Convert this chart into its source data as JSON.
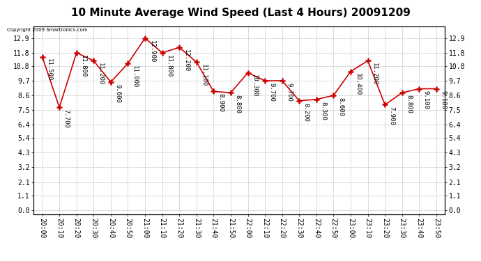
{
  "title": "10 Minute Average Wind Speed (Last 4 Hours) 20091209",
  "times": [
    "20:00",
    "20:10",
    "20:20",
    "20:30",
    "20:40",
    "20:50",
    "21:00",
    "21:10",
    "21:20",
    "21:30",
    "21:40",
    "21:50",
    "22:00",
    "22:10",
    "22:20",
    "22:30",
    "22:40",
    "22:50",
    "23:00",
    "23:10",
    "23:20",
    "23:30",
    "23:40",
    "23:50"
  ],
  "values": [
    11.5,
    7.7,
    11.8,
    11.2,
    9.6,
    11.0,
    12.9,
    11.8,
    12.2,
    11.1,
    8.9,
    8.8,
    10.3,
    9.7,
    9.7,
    8.2,
    8.3,
    8.6,
    10.4,
    11.2,
    7.9,
    8.8,
    9.1,
    9.1
  ],
  "line_color": "#cc0000",
  "marker": "+",
  "marker_size": 6,
  "bg_color": "#ffffff",
  "plot_bg_color": "#ffffff",
  "grid_color": "#bbbbbb",
  "yticks": [
    0.0,
    1.1,
    2.1,
    3.2,
    4.3,
    5.4,
    6.4,
    7.5,
    8.6,
    9.7,
    10.8,
    11.8,
    12.9
  ],
  "ylim": [
    -0.3,
    13.8
  ],
  "copyright_text": "Copyright 2009 Smartronics.com",
  "title_fontsize": 11,
  "label_fontsize": 7,
  "annotation_fontsize": 6.5,
  "annotation_rotation": 270,
  "figwidth": 6.9,
  "figheight": 3.75,
  "dpi": 100
}
